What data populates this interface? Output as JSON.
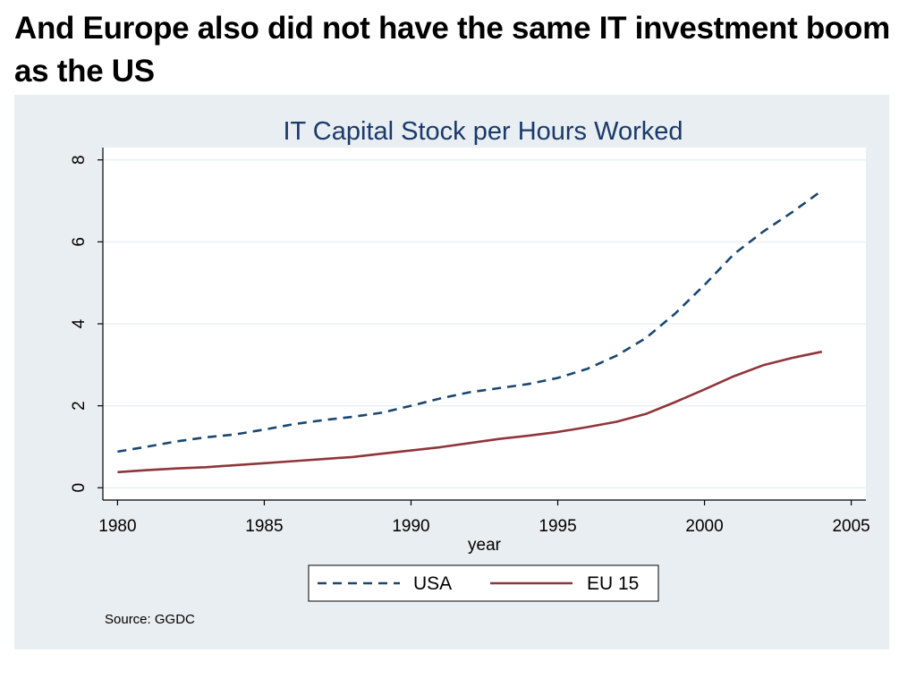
{
  "slide": {
    "title": "And Europe also did not have the same IT investment boom as the US"
  },
  "chart_data": {
    "type": "line",
    "title": "IT Capital Stock per Hours Worked",
    "xlabel": "year",
    "ylabel": "",
    "xlim": [
      1979.5,
      2005.5
    ],
    "ylim": [
      -0.3,
      8.3
    ],
    "x_ticks": [
      1980,
      1985,
      1990,
      1995,
      2000,
      2005
    ],
    "y_ticks": [
      0,
      2,
      4,
      6,
      8
    ],
    "grid": true,
    "legend_position": "bottom",
    "x": [
      1980,
      1981,
      1982,
      1983,
      1984,
      1985,
      1986,
      1987,
      1988,
      1989,
      1990,
      1991,
      1992,
      1993,
      1994,
      1995,
      1996,
      1997,
      1998,
      1999,
      2000,
      2001,
      2002,
      2003,
      2004
    ],
    "series": [
      {
        "name": "USA",
        "color": "#1a476f",
        "dash": "dashed",
        "values": [
          0.88,
          1.0,
          1.13,
          1.23,
          1.3,
          1.42,
          1.55,
          1.65,
          1.73,
          1.83,
          2.0,
          2.18,
          2.33,
          2.43,
          2.53,
          2.68,
          2.9,
          3.22,
          3.65,
          4.25,
          4.95,
          5.7,
          6.25,
          6.73,
          7.25
        ]
      },
      {
        "name": "EU 15",
        "color": "#90353b",
        "dash": "solid",
        "values": [
          0.38,
          0.43,
          0.47,
          0.5,
          0.55,
          0.6,
          0.65,
          0.7,
          0.75,
          0.83,
          0.91,
          0.99,
          1.09,
          1.19,
          1.27,
          1.36,
          1.48,
          1.61,
          1.8,
          2.09,
          2.4,
          2.72,
          2.99,
          3.17,
          3.32
        ]
      }
    ],
    "note": "Source: GGDC"
  }
}
